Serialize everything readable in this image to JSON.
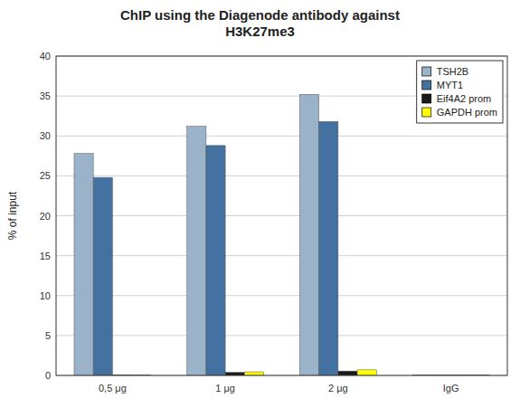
{
  "chart_data": {
    "type": "bar",
    "title": "ChIP using the Diagenode antibody against\nH3K27me3",
    "ylabel": "% of input",
    "categories": [
      "0,5 μg",
      "1 μg",
      "2 μg",
      "IgG"
    ],
    "series": [
      {
        "name": "TSH2B",
        "color": "#9ab3c8",
        "values": [
          27.8,
          31.2,
          35.2,
          0.03
        ]
      },
      {
        "name": "MYT1",
        "color": "#4472a0",
        "values": [
          24.8,
          28.8,
          31.8,
          0.03
        ]
      },
      {
        "name": "Eif4A2 prom",
        "color": "#1a1a1a",
        "values": [
          0.05,
          0.38,
          0.55,
          0.03
        ]
      },
      {
        "name": "GAPDH prom",
        "color": "#ffff00",
        "values": [
          0.05,
          0.45,
          0.7,
          0.03
        ]
      }
    ],
    "ylim": [
      0,
      40
    ],
    "yticks": [
      0,
      5,
      10,
      15,
      20,
      25,
      30,
      35,
      40
    ],
    "grid": true,
    "legend": "upper right"
  }
}
